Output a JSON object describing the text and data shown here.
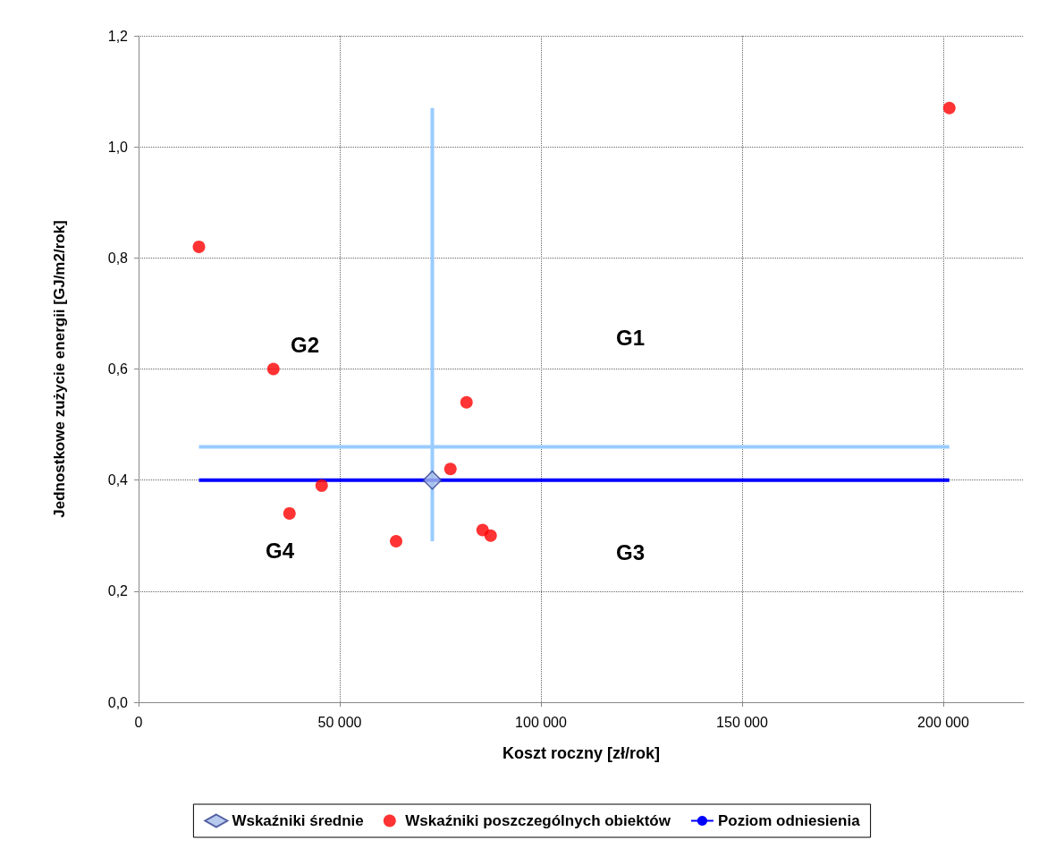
{
  "chart_data": {
    "type": "scatter",
    "xlabel": "Koszt roczny [zł/rok]",
    "ylabel": "Jednostkowe zużycie energii [GJ/m2/rok]",
    "xlim": [
      0,
      220000
    ],
    "xticks": [
      0,
      {
        "value": 50000,
        "label": "50 000"
      },
      {
        "value": 100000,
        "label": "100 000"
      },
      {
        "value": 150000,
        "label": "150 000"
      },
      {
        "value": 200000,
        "label": "200 000"
      }
    ],
    "ylim": [
      0,
      1.2
    ],
    "yticks": [
      {
        "value": 0,
        "label": "0,0"
      },
      {
        "value": 0.2,
        "label": "0,2"
      },
      {
        "value": 0.4,
        "label": "0,4"
      },
      {
        "value": 0.6,
        "label": "0,6"
      },
      {
        "value": 0.8,
        "label": "0,8"
      },
      {
        "value": 1.0,
        "label": "1,0"
      },
      {
        "value": 1.2,
        "label": "1,2"
      }
    ],
    "grid": true,
    "legend": "bottom",
    "series": [
      {
        "type": "line",
        "color": "#99ccff",
        "marker": "none",
        "x": [
          15000,
          201500
        ],
        "values": [
          0.46,
          0.46
        ]
      },
      {
        "type": "line",
        "color": "#99ccff",
        "marker": "none",
        "x": [
          73000,
          73000
        ],
        "values": [
          0.29,
          1.07
        ]
      },
      {
        "type": "line",
        "name": "Poziom odniesienia",
        "color": "#0000ff",
        "marker": "none",
        "x": [
          15000,
          201500
        ],
        "values": [
          0.4,
          0.4
        ]
      },
      {
        "name": "Wskaźniki średnie",
        "color": "#a6bde8",
        "marker": "diamond",
        "x": [
          73000
        ],
        "values": [
          0.4
        ]
      },
      {
        "name": "Wskaźniki poszczególnych obiektów",
        "color": "#ff0000",
        "marker": "circle",
        "x": [
          15000,
          33500,
          37500,
          45500,
          64000,
          77500,
          81500,
          85500,
          87500,
          201500
        ],
        "values": [
          0.82,
          0.6,
          0.34,
          0.39,
          0.29,
          0.42,
          0.54,
          0.31,
          0.3,
          1.07
        ]
      }
    ],
    "annotations": [
      "G1",
      "G2",
      "G3",
      "G4"
    ]
  }
}
